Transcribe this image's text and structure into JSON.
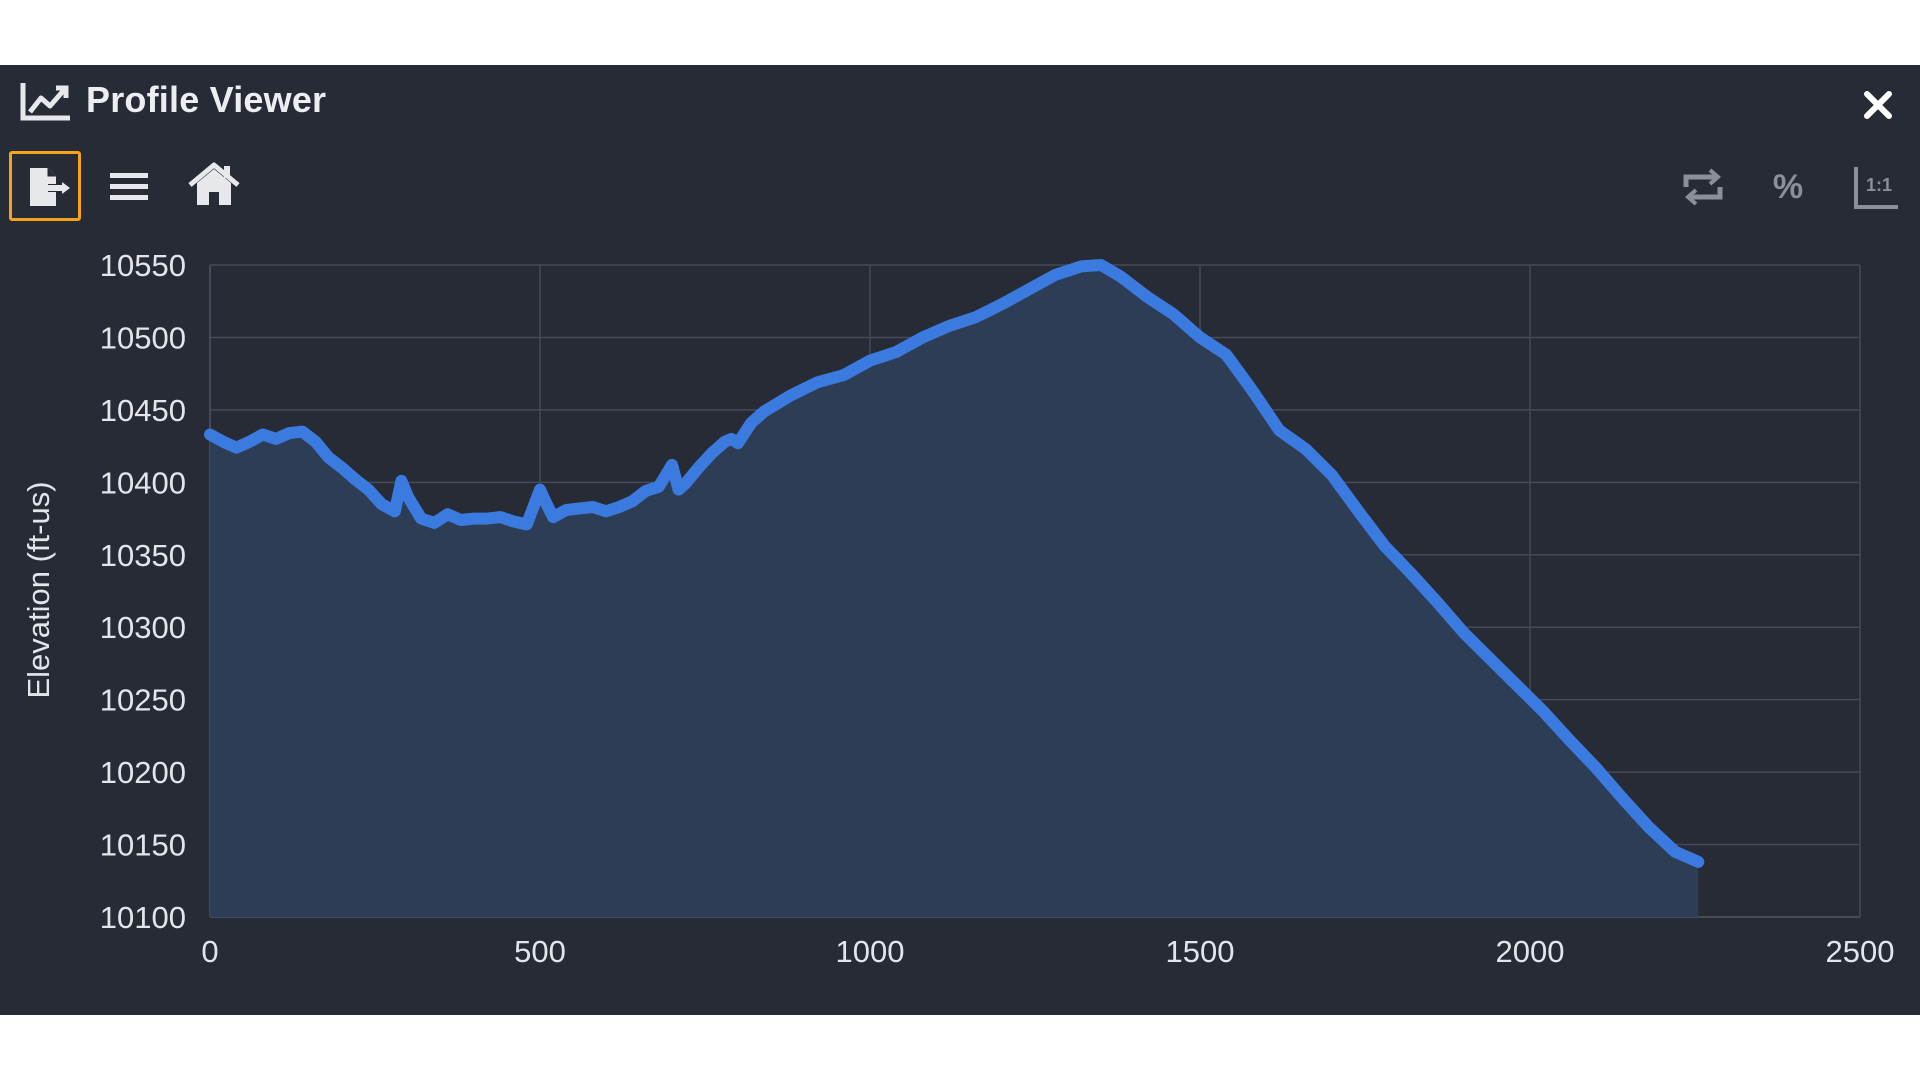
{
  "window": {
    "title": "Profile Viewer",
    "title_icon": "line-chart-icon",
    "close_icon": "close-icon"
  },
  "toolbar": {
    "left": [
      {
        "name": "export",
        "icon": "file-export-icon",
        "highlighted": true
      },
      {
        "name": "menu",
        "icon": "hamburger-menu-icon"
      },
      {
        "name": "home",
        "icon": "home-icon"
      }
    ],
    "right": [
      {
        "name": "swap",
        "icon": "swap-axes-icon"
      },
      {
        "name": "percent",
        "icon": "percent-icon",
        "label": "%"
      },
      {
        "name": "aspect-ratio",
        "icon": "aspect-ratio-icon",
        "label": "1:1"
      }
    ]
  },
  "colors": {
    "panel_bg": "#272b35",
    "line": "#3b7be0",
    "fill": "#2e3d56",
    "grid": "#454b58",
    "highlight": "#f5a31a"
  },
  "chart_data": {
    "type": "area",
    "title": "",
    "xlabel": "",
    "ylabel": "Elevation (ft-us)",
    "xlim": [
      0,
      2500
    ],
    "ylim": [
      10100,
      10550
    ],
    "xticks": [
      0,
      500,
      1000,
      1500,
      2000,
      2500
    ],
    "yticks": [
      10100,
      10150,
      10200,
      10250,
      10300,
      10350,
      10400,
      10450,
      10500,
      10550
    ],
    "grid": true,
    "series": [
      {
        "x": [
          0,
          20,
          40,
          60,
          80,
          100,
          120,
          140,
          160,
          180,
          200,
          220,
          240,
          260,
          280,
          290,
          300,
          320,
          340,
          360,
          380,
          400,
          420,
          440,
          460,
          480,
          500,
          510,
          520,
          540,
          560,
          580,
          600,
          620,
          640,
          660,
          680,
          700,
          710,
          720,
          740,
          760,
          780,
          790,
          800,
          820,
          840,
          880,
          920,
          960,
          1000,
          1040,
          1080,
          1120,
          1160,
          1200,
          1240,
          1280,
          1320,
          1350,
          1380,
          1420,
          1460,
          1500,
          1540,
          1580,
          1620,
          1660,
          1700,
          1740,
          1780,
          1820,
          1860,
          1900,
          1940,
          1980,
          2020,
          2060,
          2100,
          2140,
          2180,
          2220,
          2255
        ],
        "y": [
          10433,
          10428,
          10424,
          10428,
          10433,
          10430,
          10434,
          10435,
          10428,
          10417,
          10410,
          10402,
          10395,
          10385,
          10380,
          10401,
          10390,
          10375,
          10372,
          10378,
          10374,
          10375,
          10375,
          10376,
          10373,
          10371,
          10395,
          10385,
          10376,
          10381,
          10382,
          10383,
          10380,
          10383,
          10387,
          10394,
          10397,
          10412,
          10395,
          10399,
          10410,
          10420,
          10428,
          10430,
          10427,
          10441,
          10449,
          10460,
          10469,
          10474,
          10484,
          10490,
          10500,
          10508,
          10514,
          10523,
          10533,
          10543,
          10549,
          10550,
          10542,
          10528,
          10516,
          10500,
          10488,
          10463,
          10436,
          10423,
          10405,
          10380,
          10356,
          10337,
          10317,
          10296,
          10278,
          10260,
          10242,
          10222,
          10203,
          10182,
          10162,
          10145,
          10138
        ]
      }
    ]
  }
}
